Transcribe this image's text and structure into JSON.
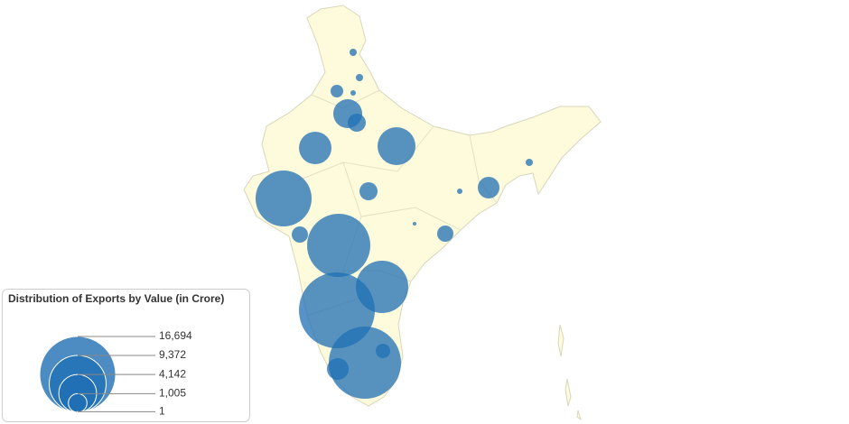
{
  "chart_data": {
    "type": "bubble-map",
    "legend_title": "Distribution of Exports by Value (in Crore)",
    "size_legend": [
      {
        "value": 16694,
        "label": "16,694"
      },
      {
        "value": 9372,
        "label": "9,372"
      },
      {
        "value": 4142,
        "label": "4,142"
      },
      {
        "value": 1005,
        "label": "1,005"
      },
      1
    ],
    "color": "#1f6fb4",
    "values": [
      151,
      151,
      463,
      85,
      2423,
      946,
      3067,
      4174,
      9095,
      946,
      1363,
      85,
      151,
      767,
      38,
      767,
      11593,
      7960,
      16694,
      15142,
      606,
      1363
    ]
  }
}
